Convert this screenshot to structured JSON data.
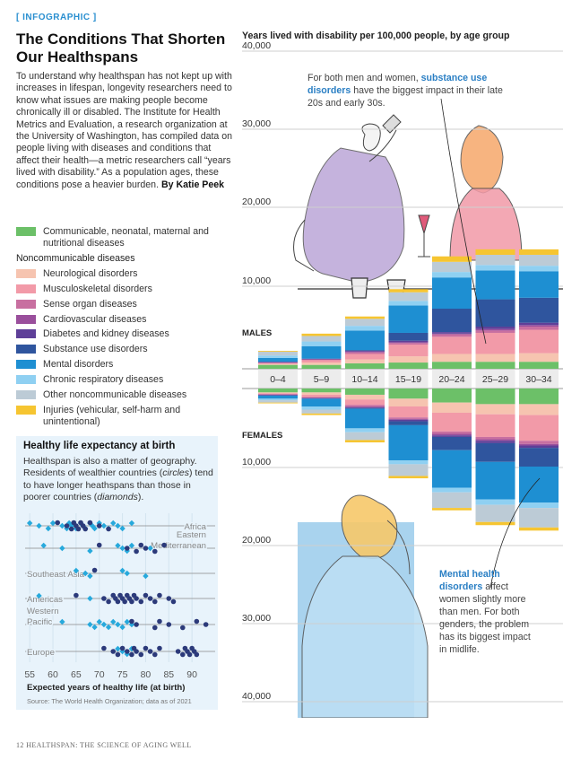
{
  "header": {
    "kicker": "[ INFOGRAPHIC ]",
    "title": "The Conditions That Shorten Our Healthspans",
    "intro": "To understand why healthspan has not kept up with increases in lifespan, longevity researchers need to know what issues are making people become chronically ill or disabled. The Institute for Health Metrics and Evaluation, a research organization at the University of Washington, has compiled data on people living with diseases and conditions that affect their health—a metric researchers call “years lived with disability.” As a population ages, these conditions pose a heavier burden.",
    "byline": "By Katie Peek"
  },
  "legend": {
    "group_label": "Noncommunicable diseases",
    "items": [
      {
        "label": "Communicable, neonatal, maternal and nutritional diseases",
        "color": "#6cc068"
      },
      {
        "label": "Neurological disorders",
        "color": "#f6c4b0"
      },
      {
        "label": "Musculoskeletal disorders",
        "color": "#f29aa8"
      },
      {
        "label": "Sense organ diseases",
        "color": "#c86fa0"
      },
      {
        "label": "Cardiovascular diseases",
        "color": "#9a4f9c"
      },
      {
        "label": "Diabetes and kidney diseases",
        "color": "#5e3f98"
      },
      {
        "label": "Substance use disorders",
        "color": "#2f559e"
      },
      {
        "label": "Mental disorders",
        "color": "#1e8fd2"
      },
      {
        "label": "Chronic respiratory diseases",
        "color": "#8fd0f2"
      },
      {
        "label": "Other noncommunicable diseases",
        "color": "#bccbd6"
      },
      {
        "label": "Injuries (vehicular, self-harm and unintentional)",
        "color": "#f6c531"
      }
    ]
  },
  "hle_panel": {
    "title": "Healthy life expectancy at birth",
    "text_1": "Healthspan is also a matter of geography. Residents of wealthier countries (",
    "text_circles": "circles",
    "text_2": ") tend to have longer heathspans than those in poorer countries (",
    "text_diamonds": "diamonds",
    "text_3": ").",
    "xlabel": "Expected years of healthy life (at birth)",
    "source": "Source: The World Health Organization; data as of 2021"
  },
  "footer": "12   HEALTHSPAN: THE SCIENCE OF AGING WELL",
  "main_chart": {
    "title": "Years lived with disability per 100,000 people, by age group",
    "callout_top_1": "For both men and women, ",
    "callout_top_hl": "substance use disorders",
    "callout_top_2": " have the biggest impact in their late 20s and early 30s.",
    "callout_bot_hl": "Mental health disorders",
    "callout_bot_2": " affect women slightly more than men. For both genders, the problem has its biggest impact in midlife."
  },
  "chart_data": [
    {
      "type": "bar",
      "title": "Years lived with disability per 100,000 people, by age group",
      "categories": [
        "0–4",
        "5–9",
        "10–14",
        "15–19",
        "20–24",
        "25–29",
        "30–34"
      ],
      "upper_label": "MALES",
      "lower_label": "FEMALES",
      "tick_labels": [
        "40,000",
        "30,000",
        "20,000",
        "10,000",
        "10,000",
        "20,000",
        "30,000",
        "40,000"
      ],
      "ylim": [
        0,
        40000
      ],
      "males": [
        {
          "name": "Communicable, neonatal, maternal and nutritional diseases",
          "values": [
            500,
            500,
            700,
            800,
            900,
            900,
            900
          ]
        },
        {
          "name": "Neurological disorders",
          "values": [
            100,
            300,
            500,
            800,
            1000,
            1000,
            1100
          ]
        },
        {
          "name": "Musculoskeletal disorders",
          "values": [
            100,
            300,
            700,
            1500,
            2200,
            2700,
            3000
          ]
        },
        {
          "name": "Sense organ diseases",
          "values": [
            100,
            100,
            200,
            200,
            300,
            300,
            400
          ]
        },
        {
          "name": "Cardiovascular diseases",
          "values": [
            0,
            0,
            100,
            100,
            100,
            200,
            200
          ]
        },
        {
          "name": "Diabetes and kidney diseases",
          "values": [
            100,
            100,
            100,
            200,
            200,
            300,
            300
          ]
        },
        {
          "name": "Substance use disorders",
          "values": [
            0,
            0,
            100,
            1000,
            3000,
            3500,
            3200
          ]
        },
        {
          "name": "Mental disorders",
          "values": [
            500,
            1600,
            2500,
            3500,
            4000,
            3700,
            3400
          ]
        },
        {
          "name": "Chronic respiratory diseases",
          "values": [
            300,
            600,
            600,
            600,
            700,
            700,
            700
          ]
        },
        {
          "name": "Other noncommunicable diseases",
          "values": [
            500,
            700,
            900,
            1100,
            1300,
            1300,
            1400
          ]
        },
        {
          "name": "Injuries (vehicular, self-harm and unintentional)",
          "values": [
            100,
            300,
            300,
            400,
            700,
            700,
            700
          ]
        }
      ],
      "females": [
        {
          "name": "Communicable, neonatal, maternal and nutritional diseases",
          "values": [
            500,
            500,
            800,
            1300,
            1800,
            2000,
            2000
          ]
        },
        {
          "name": "Neurological disorders",
          "values": [
            100,
            300,
            600,
            1000,
            1300,
            1300,
            1400
          ]
        },
        {
          "name": "Musculoskeletal disorders",
          "values": [
            100,
            300,
            700,
            1400,
            2400,
            2900,
            3300
          ]
        },
        {
          "name": "Sense organ diseases",
          "values": [
            100,
            100,
            200,
            200,
            300,
            300,
            400
          ]
        },
        {
          "name": "Cardiovascular diseases",
          "values": [
            0,
            0,
            100,
            100,
            200,
            200,
            200
          ]
        },
        {
          "name": "Diabetes and kidney diseases",
          "values": [
            100,
            100,
            100,
            200,
            200,
            300,
            300
          ]
        },
        {
          "name": "Substance use disorders",
          "values": [
            0,
            0,
            100,
            500,
            1700,
            2400,
            2400
          ]
        },
        {
          "name": "Mental disorders",
          "values": [
            400,
            1000,
            2500,
            4500,
            4800,
            4800,
            4600
          ]
        },
        {
          "name": "Chronic respiratory diseases",
          "values": [
            200,
            400,
            500,
            500,
            600,
            700,
            700
          ]
        },
        {
          "name": "Other noncommunicable diseases",
          "values": [
            300,
            500,
            1000,
            1500,
            2000,
            2200,
            2500
          ]
        },
        {
          "name": "Injuries (vehicular, self-harm and unintentional)",
          "values": [
            100,
            200,
            300,
            300,
            300,
            400,
            400
          ]
        }
      ]
    },
    {
      "type": "scatter",
      "title": "Healthy life expectancy at birth",
      "xlabel": "Expected years of healthy life (at birth)",
      "x_ticks": [
        55,
        60,
        65,
        70,
        75,
        80,
        85,
        90
      ],
      "xlim": [
        54,
        95
      ],
      "series": [
        {
          "name": "Africa",
          "circles": [
            61,
            63,
            64,
            64.5,
            65,
            65.5,
            66,
            66.5,
            67,
            68,
            70,
            72
          ],
          "diamonds": [
            55,
            57,
            59,
            60,
            62,
            63,
            63.5,
            64,
            65,
            66,
            66.5,
            67,
            68,
            68.5,
            69,
            70,
            71,
            72,
            73,
            74,
            75,
            77
          ]
        },
        {
          "name": "Eastern Mediterranean",
          "circles": [
            70,
            76,
            78,
            79,
            80,
            82,
            84
          ],
          "diamonds": [
            58,
            62,
            68,
            74,
            75,
            76,
            77,
            81
          ]
        },
        {
          "name": "Southeast Asia",
          "circles": [
            69
          ],
          "diamonds": [
            65,
            67,
            68,
            75,
            76,
            80
          ]
        },
        {
          "name": "Americas",
          "circles": [
            65,
            71,
            72,
            73,
            73.5,
            74,
            74.5,
            75,
            75.5,
            76,
            76.5,
            77,
            77.5,
            78,
            79,
            80,
            81,
            82,
            83,
            85,
            86
          ],
          "diamonds": [
            57,
            68
          ]
        },
        {
          "name": "Western Pacific",
          "circles": [
            77,
            78,
            82,
            83,
            85,
            88,
            91,
            93
          ],
          "diamonds": [
            62,
            68,
            69,
            70,
            71,
            72,
            73,
            74,
            75,
            76,
            77
          ]
        },
        {
          "name": "Europe",
          "circles": [
            71,
            73,
            74,
            75,
            76,
            77,
            77.5,
            78,
            79,
            80,
            81,
            82,
            83,
            87,
            88,
            88.5,
            89,
            89.5,
            90,
            90.5,
            91
          ],
          "diamonds": [
            74,
            75,
            76,
            77
          ]
        }
      ]
    }
  ]
}
